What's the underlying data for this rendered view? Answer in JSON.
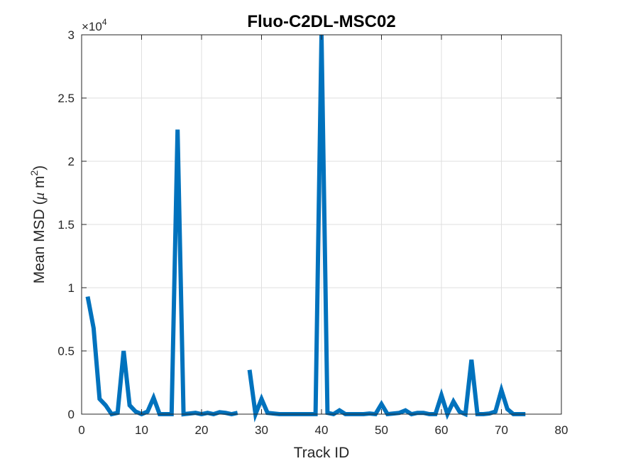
{
  "chart_data": {
    "type": "line",
    "title": "Fluo-C2DL-MSC02",
    "xlabel": "Track ID",
    "ylabel_main": "Mean MSD (",
    "ylabel_mu": "μ",
    "ylabel_unit": " m",
    "ylabel_sup": "2",
    "ylabel_close": ")",
    "y_exponent_base": "×10",
    "y_exponent_power": "4",
    "xlim": [
      0,
      80
    ],
    "ylim": [
      0,
      3
    ],
    "x_ticks": [
      0,
      10,
      20,
      30,
      40,
      50,
      60,
      70,
      80
    ],
    "y_ticks": [
      0,
      0.5,
      1,
      1.5,
      2,
      2.5,
      3
    ],
    "x_tick_labels": [
      "0",
      "10",
      "20",
      "30",
      "40",
      "50",
      "60",
      "70",
      "80"
    ],
    "y_tick_labels": [
      "0",
      "0.5",
      "1",
      "1.5",
      "2",
      "2.5",
      "3"
    ],
    "grid": true,
    "line_color": "#0072BD",
    "segments": [
      {
        "x": [
          1,
          2,
          3,
          4,
          5,
          6,
          7,
          8,
          9,
          10,
          11,
          12,
          13,
          14,
          15,
          16,
          17,
          18,
          19,
          20,
          21,
          22,
          23,
          24,
          25,
          26
        ],
        "y": [
          0.93,
          0.68,
          0.12,
          0.07,
          0.0,
          0.01,
          0.5,
          0.07,
          0.02,
          0.0,
          0.02,
          0.13,
          0.0,
          0.0,
          0.0,
          2.25,
          0.0,
          0.005,
          0.01,
          0.0,
          0.01,
          0.0,
          0.015,
          0.01,
          0.0,
          0.01
        ]
      },
      {
        "x": [
          28,
          29,
          30,
          31,
          32,
          33,
          34,
          35,
          36,
          37,
          38,
          39,
          40,
          41,
          42,
          43,
          44,
          45,
          46,
          47,
          48,
          49,
          50,
          51,
          52,
          53,
          54,
          55,
          56,
          57,
          58,
          59,
          60,
          61,
          62,
          63,
          64,
          65,
          66,
          67,
          68,
          69,
          70,
          71,
          72,
          73,
          74
        ],
        "y": [
          0.35,
          0.0,
          0.12,
          0.01,
          0.005,
          0.0,
          0.0,
          0.0,
          0.0,
          0.0,
          0.0,
          0.0,
          3.0,
          0.01,
          0.0,
          0.03,
          0.0,
          0.0,
          0.0,
          0.0,
          0.005,
          0.0,
          0.08,
          0.0,
          0.005,
          0.01,
          0.03,
          0.0,
          0.01,
          0.01,
          0.0,
          0.0,
          0.15,
          0.0,
          0.1,
          0.02,
          0.0,
          0.43,
          0.0,
          0.0,
          0.005,
          0.02,
          0.19,
          0.04,
          0.0,
          0.0,
          0.0
        ]
      }
    ]
  }
}
